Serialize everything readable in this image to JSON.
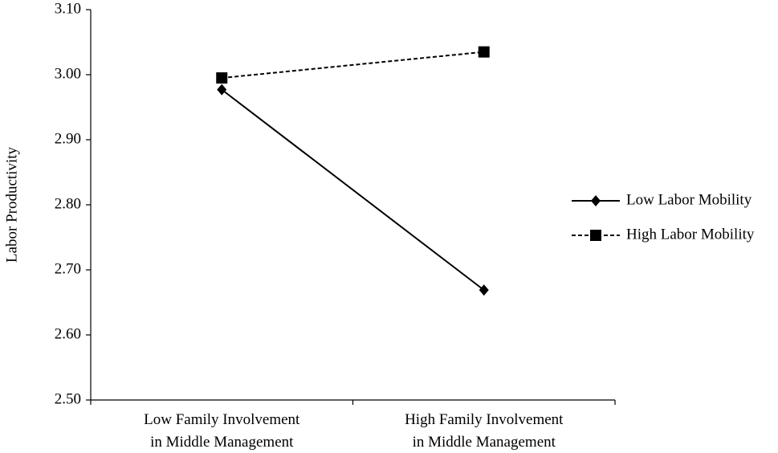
{
  "chart_data": {
    "type": "line",
    "y_label": "Labor Productivity",
    "categories": [
      "Low Family Involvement\nin Middle Management",
      "High Family Involvement\nin Middle Management"
    ],
    "series": [
      {
        "name": "Low Labor Mobility",
        "color": "#000000",
        "line_style": "solid",
        "marker": "diamond",
        "values": [
          2.977,
          2.669
        ]
      },
      {
        "name": "High Labor Mobility",
        "color": "#000000",
        "line_style": "dashed",
        "marker": "square",
        "values": [
          2.995,
          3.035
        ]
      }
    ],
    "ylim": [
      2.5,
      3.1
    ],
    "yticks": [
      {
        "value": 2.5,
        "label": "2.50"
      },
      {
        "value": 2.6,
        "label": "2.60"
      },
      {
        "value": 2.7,
        "label": "2.70"
      },
      {
        "value": 2.8,
        "label": "2.80"
      },
      {
        "value": 2.9,
        "label": "2.90"
      },
      {
        "value": 3.0,
        "label": "3.00"
      },
      {
        "value": 3.1,
        "label": "3.10"
      }
    ],
    "grid": false,
    "legend": "right"
  }
}
